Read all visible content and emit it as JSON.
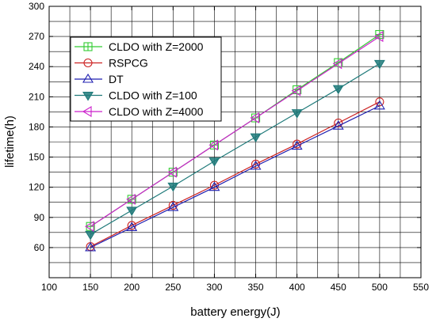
{
  "chart_data": {
    "type": "line",
    "title": "",
    "xlabel": "battery energy(J)",
    "ylabel": "lifetime(h)",
    "xlim": [
      100,
      550
    ],
    "ylim": [
      30,
      300
    ],
    "xticks": [
      100,
      150,
      200,
      250,
      300,
      350,
      400,
      450,
      500,
      550
    ],
    "yticks": [
      60,
      90,
      120,
      150,
      180,
      210,
      240,
      270,
      300
    ],
    "grid": true,
    "legend_position": "top-left",
    "x": [
      150,
      200,
      250,
      300,
      350,
      400,
      450,
      500
    ],
    "series": [
      {
        "name": "CLDO with Z=2000",
        "color": "#33cc33",
        "marker": "square-plus",
        "values": [
          81,
          108,
          135,
          162,
          189,
          217,
          244,
          272
        ]
      },
      {
        "name": "RSPCG",
        "color": "#cc2222",
        "marker": "circle",
        "values": [
          61,
          82,
          102,
          122,
          143,
          163,
          184,
          205
        ]
      },
      {
        "name": "DT",
        "color": "#1f1fb0",
        "marker": "triangle-up",
        "values": [
          60,
          80,
          100,
          120,
          141,
          161,
          181,
          201
        ]
      },
      {
        "name": "CLDO with Z=100",
        "color": "#1f7a7a",
        "marker": "triangle-down",
        "values": [
          73,
          97,
          121,
          146,
          170,
          194,
          218,
          243
        ]
      },
      {
        "name": "CLDO with Z=4000",
        "color": "#cc22cc",
        "marker": "triangle-left",
        "values": [
          81,
          108,
          135,
          162,
          189,
          216,
          243,
          270
        ]
      }
    ]
  }
}
